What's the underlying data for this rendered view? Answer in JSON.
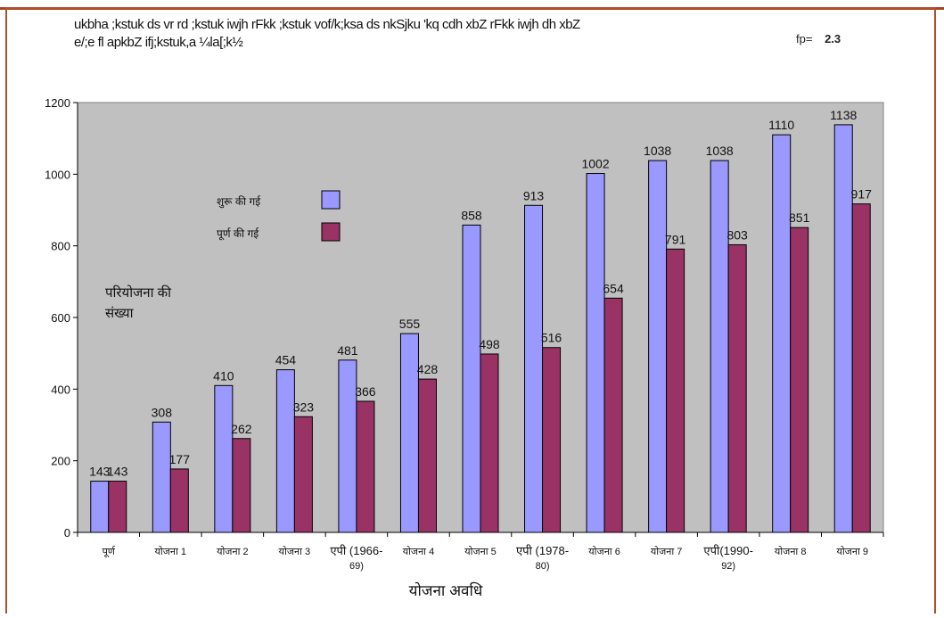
{
  "header": {
    "line1": "ukbha ;kstuk ds vr rd ;kstuk iwjh rFkk ;kstuk vof/k;ksa ds nkSjku 'kq cdh xbZ rFkk iwjh dh xbZ",
    "line2": "e/;e fl apkbZ ifj;kstuk,a ¼la[;k½",
    "figure_label": "fp=",
    "figure_number": "2.3"
  },
  "chart_data": {
    "type": "bar",
    "categories": [
      "पूर्ण",
      "योजना 1",
      "योजना 2",
      "योजना 3",
      "एपी (1966-69)",
      "योजना 4",
      "योजना 5",
      "एपी (1978-80)",
      "योजना 6",
      "योजना 7",
      "एपी(1990-92)",
      "योजना 8",
      "योजना 9"
    ],
    "category_lines": [
      [
        "पूर्ण"
      ],
      [
        "योजना 1"
      ],
      [
        "योजना 2"
      ],
      [
        "योजना 3"
      ],
      [
        "एपी (1966-",
        "69)"
      ],
      [
        "योजना 4"
      ],
      [
        "योजना 5"
      ],
      [
        "एपी (1978-",
        "80)"
      ],
      [
        "योजना 6"
      ],
      [
        "योजना 7"
      ],
      [
        "एपी(1990-",
        "92)"
      ],
      [
        "योजना 8"
      ],
      [
        "योजना 9"
      ]
    ],
    "series": [
      {
        "name": "शुरू की गई",
        "color": "#9999ff",
        "values": [
          143,
          308,
          410,
          454,
          481,
          555,
          858,
          913,
          1002,
          1038,
          1038,
          1110,
          1138
        ]
      },
      {
        "name": "पूर्ण की गई",
        "color": "#993366",
        "values": [
          143,
          177,
          262,
          323,
          366,
          428,
          498,
          516,
          654,
          791,
          803,
          851,
          917
        ]
      }
    ],
    "xlabel": "योजना अवधि",
    "ylabel": "परियोजना की संख्या",
    "ylim": [
      0,
      1200
    ],
    "yticks": [
      0,
      200,
      400,
      600,
      800,
      1000,
      1200
    ],
    "plot_background": "#c0c0c0",
    "grid": false,
    "legend_position": "upper-left inside plot"
  }
}
